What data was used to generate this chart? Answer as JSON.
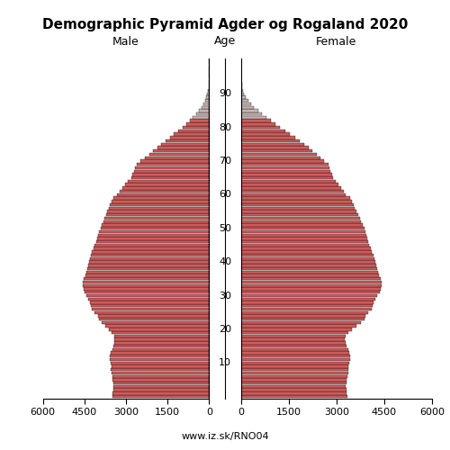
{
  "title": "Demographic Pyramid Agder og Rogaland 2020",
  "male_label": "Male",
  "female_label": "Female",
  "age_label": "Age",
  "footer": "www.iz.sk/RNO04",
  "xlim": 6000,
  "bar_color_young": "#CD5C5C",
  "bar_color_old": "#C8B4B4",
  "edge_color": "#000000",
  "old_age_threshold": 83,
  "ages": [
    0,
    1,
    2,
    3,
    4,
    5,
    6,
    7,
    8,
    9,
    10,
    11,
    12,
    13,
    14,
    15,
    16,
    17,
    18,
    19,
    20,
    21,
    22,
    23,
    24,
    25,
    26,
    27,
    28,
    29,
    30,
    31,
    32,
    33,
    34,
    35,
    36,
    37,
    38,
    39,
    40,
    41,
    42,
    43,
    44,
    45,
    46,
    47,
    48,
    49,
    50,
    51,
    52,
    53,
    54,
    55,
    56,
    57,
    58,
    59,
    60,
    61,
    62,
    63,
    64,
    65,
    66,
    67,
    68,
    69,
    70,
    71,
    72,
    73,
    74,
    75,
    76,
    77,
    78,
    79,
    80,
    81,
    82,
    83,
    84,
    85,
    86,
    87,
    88,
    89,
    90,
    91,
    92,
    93,
    94,
    95,
    96,
    97,
    98,
    99,
    100
  ],
  "male": [
    3500,
    3480,
    3460,
    3440,
    3460,
    3480,
    3500,
    3530,
    3540,
    3510,
    3560,
    3580,
    3590,
    3550,
    3500,
    3460,
    3420,
    3410,
    3430,
    3510,
    3630,
    3730,
    3880,
    3980,
    4020,
    4120,
    4220,
    4270,
    4300,
    4370,
    4440,
    4500,
    4540,
    4570,
    4550,
    4520,
    4470,
    4440,
    4400,
    4370,
    4340,
    4300,
    4270,
    4220,
    4170,
    4120,
    4070,
    4040,
    4000,
    3970,
    3920,
    3870,
    3820,
    3770,
    3720,
    3670,
    3620,
    3570,
    3520,
    3470,
    3320,
    3220,
    3120,
    3020,
    2920,
    2820,
    2770,
    2720,
    2670,
    2620,
    2470,
    2320,
    2170,
    2020,
    1870,
    1720,
    1570,
    1420,
    1270,
    1120,
    960,
    830,
    710,
    590,
    475,
    375,
    285,
    215,
    155,
    105,
    68,
    43,
    27,
    17,
    10,
    6,
    4,
    2,
    1,
    1,
    0
  ],
  "female": [
    3350,
    3330,
    3310,
    3290,
    3310,
    3330,
    3350,
    3370,
    3380,
    3360,
    3400,
    3420,
    3430,
    3400,
    3360,
    3320,
    3280,
    3260,
    3290,
    3370,
    3500,
    3620,
    3770,
    3870,
    3920,
    4000,
    4100,
    4140,
    4170,
    4220,
    4290,
    4360,
    4400,
    4430,
    4410,
    4380,
    4340,
    4310,
    4270,
    4240,
    4220,
    4190,
    4160,
    4110,
    4070,
    4030,
    3990,
    3960,
    3930,
    3900,
    3870,
    3830,
    3780,
    3730,
    3680,
    3630,
    3580,
    3530,
    3480,
    3430,
    3300,
    3220,
    3140,
    3060,
    2980,
    2900,
    2860,
    2820,
    2780,
    2740,
    2620,
    2500,
    2380,
    2250,
    2120,
    1990,
    1840,
    1700,
    1550,
    1400,
    1240,
    1090,
    940,
    800,
    660,
    540,
    415,
    315,
    235,
    165,
    110,
    72,
    47,
    32,
    21,
    13,
    8,
    5,
    3,
    2,
    1
  ]
}
